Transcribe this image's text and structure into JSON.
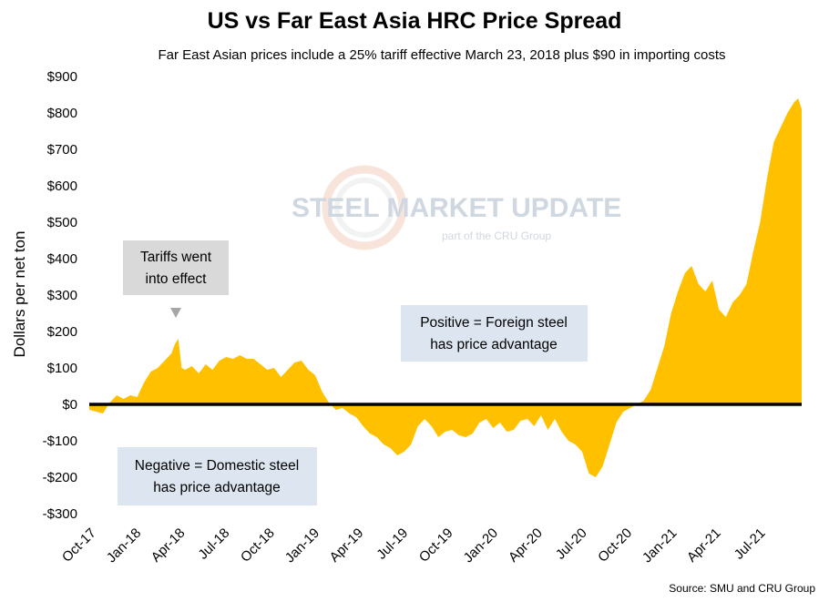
{
  "chart_data": {
    "type": "area",
    "title": "US vs Far East Asia HRC Price Spread",
    "subtitle": "Far East Asian prices include a 25% tariff effective March 23, 2018 plus $90 in importing costs",
    "ylabel": "Dollars per net ton",
    "xlabel": "",
    "ylim": [
      -300,
      900
    ],
    "yticks": [
      -300,
      -200,
      -100,
      0,
      100,
      200,
      300,
      400,
      500,
      600,
      700,
      800,
      900
    ],
    "ytick_labels": [
      "-$300",
      "-$200",
      "-$100",
      "$0",
      "$100",
      "$200",
      "$300",
      "$400",
      "$500",
      "$600",
      "$700",
      "$800",
      "$900"
    ],
    "xtick_labels": [
      "Oct-17",
      "Jan-18",
      "Apr-18",
      "Jul-18",
      "Oct-18",
      "Jan-19",
      "Apr-19",
      "Jul-19",
      "Oct-19",
      "Jan-20",
      "Apr-20",
      "Jul-20",
      "Oct-20",
      "Jan-21",
      "Apr-21",
      "Jul-21"
    ],
    "series": [
      {
        "color": "#FFC000",
        "x": [
          "2017-10-01",
          "2017-10-15",
          "2017-10-29",
          "2017-11-12",
          "2017-11-26",
          "2017-12-10",
          "2017-12-24",
          "2018-01-07",
          "2018-01-21",
          "2018-02-04",
          "2018-02-18",
          "2018-03-04",
          "2018-03-18",
          "2018-03-25",
          "2018-04-01",
          "2018-04-08",
          "2018-04-15",
          "2018-04-29",
          "2018-05-13",
          "2018-05-27",
          "2018-06-10",
          "2018-06-24",
          "2018-07-08",
          "2018-07-22",
          "2018-08-05",
          "2018-08-19",
          "2018-09-02",
          "2018-09-16",
          "2018-09-30",
          "2018-10-14",
          "2018-10-28",
          "2018-11-11",
          "2018-11-25",
          "2018-12-09",
          "2018-12-23",
          "2019-01-06",
          "2019-01-20",
          "2019-02-03",
          "2019-02-17",
          "2019-03-03",
          "2019-03-17",
          "2019-03-31",
          "2019-04-14",
          "2019-04-28",
          "2019-05-12",
          "2019-05-26",
          "2019-06-09",
          "2019-06-23",
          "2019-07-07",
          "2019-07-21",
          "2019-08-04",
          "2019-08-18",
          "2019-09-01",
          "2019-09-15",
          "2019-09-29",
          "2019-10-13",
          "2019-10-27",
          "2019-11-10",
          "2019-11-24",
          "2019-12-08",
          "2019-12-22",
          "2020-01-05",
          "2020-01-19",
          "2020-02-02",
          "2020-02-16",
          "2020-03-01",
          "2020-03-15",
          "2020-03-29",
          "2020-04-12",
          "2020-04-26",
          "2020-05-10",
          "2020-05-24",
          "2020-06-07",
          "2020-06-21",
          "2020-07-05",
          "2020-07-19",
          "2020-08-02",
          "2020-08-16",
          "2020-08-30",
          "2020-09-13",
          "2020-09-27",
          "2020-10-11",
          "2020-10-25",
          "2020-11-08",
          "2020-11-22",
          "2020-12-06",
          "2020-12-20",
          "2021-01-03",
          "2021-01-17",
          "2021-01-31",
          "2021-02-14",
          "2021-02-28",
          "2021-03-14",
          "2021-03-28",
          "2021-04-11",
          "2021-04-25",
          "2021-05-09",
          "2021-05-23",
          "2021-06-06",
          "2021-06-20",
          "2021-07-04",
          "2021-07-18",
          "2021-08-01",
          "2021-08-15",
          "2021-08-29",
          "2021-09-12",
          "2021-09-20",
          "2021-09-27"
        ],
        "values": [
          -15,
          -20,
          -25,
          5,
          25,
          15,
          25,
          20,
          60,
          90,
          100,
          120,
          140,
          165,
          180,
          100,
          95,
          105,
          85,
          110,
          95,
          120,
          130,
          125,
          135,
          125,
          125,
          110,
          95,
          100,
          75,
          95,
          115,
          120,
          95,
          80,
          35,
          5,
          -15,
          -10,
          -25,
          -35,
          -60,
          -80,
          -90,
          -110,
          -120,
          -140,
          -130,
          -110,
          -60,
          -40,
          -60,
          -90,
          -75,
          -70,
          -85,
          -90,
          -80,
          -50,
          -40,
          -65,
          -50,
          -75,
          -70,
          -45,
          -40,
          -60,
          -30,
          -70,
          -40,
          -75,
          -100,
          -110,
          -130,
          -190,
          -200,
          -170,
          -110,
          -50,
          -20,
          -10,
          0,
          10,
          40,
          100,
          160,
          250,
          310,
          360,
          380,
          330,
          310,
          340,
          260,
          240,
          280,
          300,
          330,
          420,
          500,
          620,
          720,
          760,
          800,
          830,
          840,
          810
        ]
      }
    ],
    "annotations": [
      {
        "text_lines": [
          "Tariffs went",
          "into effect"
        ]
      },
      {
        "text_lines": [
          "Positive = Foreign steel",
          "has price advantage"
        ]
      },
      {
        "text_lines": [
          "Negative = Domestic steel",
          "has price advantage"
        ]
      }
    ],
    "watermark": {
      "logo_text": "STEEL MARKET UPDATE",
      "tagline": "part of the CRU Group"
    },
    "source": "Source: SMU and CRU Group",
    "grid": false,
    "legend": "none"
  }
}
